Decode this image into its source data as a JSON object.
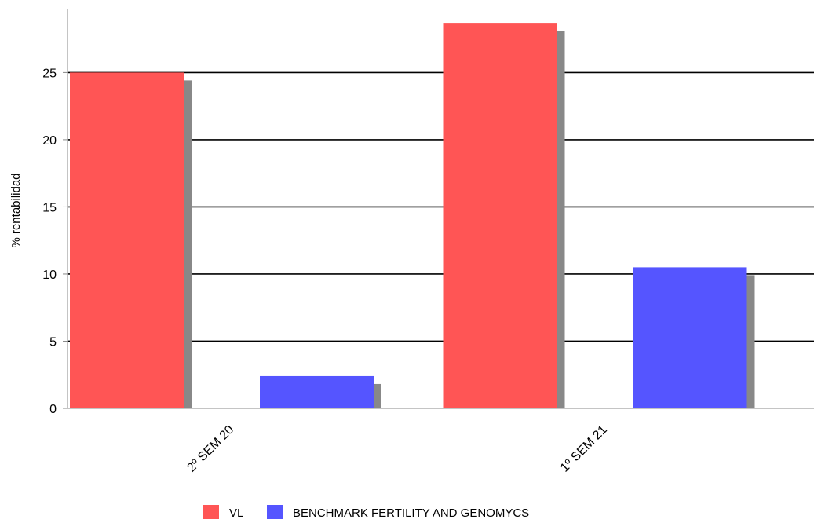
{
  "chart_data": {
    "type": "bar",
    "categories": [
      "2º SEM 20",
      "1º SEM 21"
    ],
    "series": [
      {
        "name": "VL",
        "values": [
          25,
          28.7
        ],
        "color": "#ff5555"
      },
      {
        "name": "BENCHMARK FERTILITY AND GENOMYCS",
        "values": [
          2.4,
          10.5
        ],
        "color": "#5555ff"
      }
    ],
    "yticks": [
      0,
      5,
      10,
      15,
      20,
      25
    ],
    "ylim": [
      0,
      29.7
    ],
    "ylabel": "% rentabilidad",
    "grid": true,
    "legend_position": "bottom",
    "shadow_color": "#888888"
  }
}
